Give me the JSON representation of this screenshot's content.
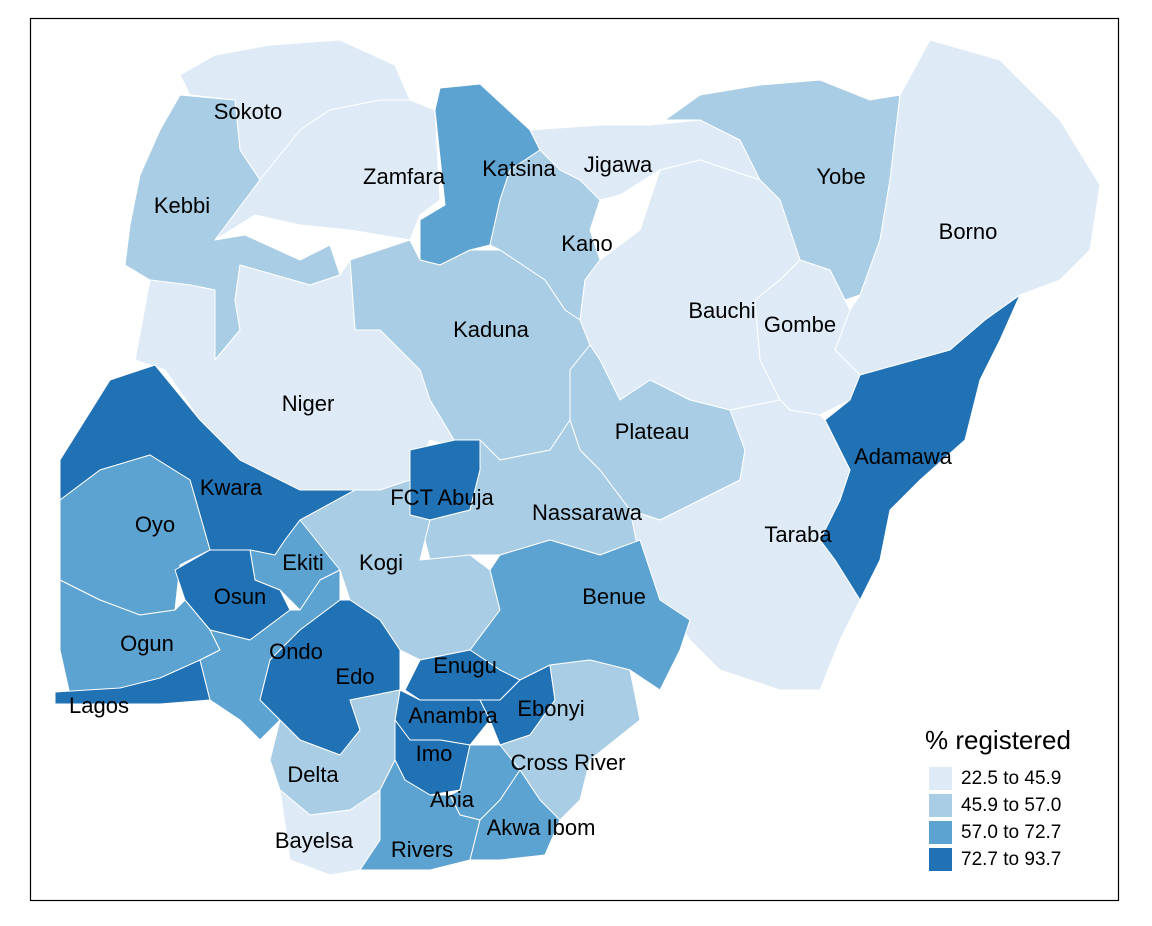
{
  "map": {
    "legend": {
      "title": "% registered",
      "bins": [
        {
          "label": "22.5 to 45.9",
          "color": "#deebf7"
        },
        {
          "label": "45.9 to 57.0",
          "color": "#a9cde4"
        },
        {
          "label": "57.0 to 72.7",
          "color": "#5ca3d1"
        },
        {
          "label": "72.7 to 93.7",
          "color": "#2171b5"
        }
      ]
    },
    "regions": [
      {
        "name": "Sokoto",
        "color": "#deebf7"
      },
      {
        "name": "Kebbi",
        "color": "#a9cde4"
      },
      {
        "name": "Zamfara",
        "color": "#deebf7"
      },
      {
        "name": "Katsina",
        "color": "#5ca3d1"
      },
      {
        "name": "Jigawa",
        "color": "#deebf7"
      },
      {
        "name": "Kano",
        "color": "#a9cde4"
      },
      {
        "name": "Yobe",
        "color": "#a9cde4"
      },
      {
        "name": "Borno",
        "color": "#deebf7"
      },
      {
        "name": "Kaduna",
        "color": "#a9cde4"
      },
      {
        "name": "Bauchi",
        "color": "#deebf7"
      },
      {
        "name": "Gombe",
        "color": "#deebf7"
      },
      {
        "name": "Niger",
        "color": "#deebf7"
      },
      {
        "name": "Adamawa",
        "color": "#2171b5"
      },
      {
        "name": "Plateau",
        "color": "#a9cde4"
      },
      {
        "name": "Kwara",
        "color": "#2171b5"
      },
      {
        "name": "FCT Abuja",
        "color": "#2171b5"
      },
      {
        "name": "Nassarawa",
        "color": "#a9cde4"
      },
      {
        "name": "Taraba",
        "color": "#deebf7"
      },
      {
        "name": "Oyo",
        "color": "#5ca3d1"
      },
      {
        "name": "Ekiti",
        "color": "#5ca3d1"
      },
      {
        "name": "Kogi",
        "color": "#a9cde4"
      },
      {
        "name": "Osun",
        "color": "#2171b5"
      },
      {
        "name": "Ogun",
        "color": "#5ca3d1"
      },
      {
        "name": "Lagos",
        "color": "#2171b5"
      },
      {
        "name": "Ondo",
        "color": "#5ca3d1"
      },
      {
        "name": "Edo",
        "color": "#2171b5"
      },
      {
        "name": "Benue",
        "color": "#5ca3d1"
      },
      {
        "name": "Enugu",
        "color": "#2171b5"
      },
      {
        "name": "Anambra",
        "color": "#2171b5"
      },
      {
        "name": "Ebonyi",
        "color": "#2171b5"
      },
      {
        "name": "Imo",
        "color": "#2171b5"
      },
      {
        "name": "Cross River",
        "color": "#a9cde4"
      },
      {
        "name": "Abia",
        "color": "#5ca3d1"
      },
      {
        "name": "Delta",
        "color": "#a9cde4"
      },
      {
        "name": "Bayelsa",
        "color": "#deebf7"
      },
      {
        "name": "Rivers",
        "color": "#5ca3d1"
      },
      {
        "name": "Akwa Ibom",
        "color": "#5ca3d1"
      }
    ]
  }
}
